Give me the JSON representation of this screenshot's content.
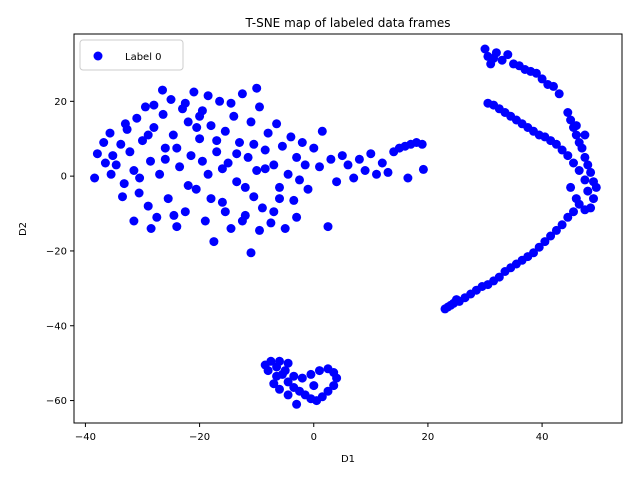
{
  "chart_data": {
    "type": "scatter",
    "title": "T-SNE map of labeled data frames",
    "xlabel": "D1",
    "ylabel": "D2",
    "xlim": [
      -42,
      54
    ],
    "ylim": [
      -66,
      38
    ],
    "xticks": [
      -40,
      -20,
      0,
      20,
      40
    ],
    "yticks": [
      -60,
      -40,
      -20,
      0,
      20
    ],
    "xtick_labels": [
      "−40",
      "−20",
      "0",
      "20",
      "40"
    ],
    "ytick_labels": [
      "−60",
      "−40",
      "−20",
      "0",
      "20"
    ],
    "grid": false,
    "legend_position": "top-left",
    "series": [
      {
        "name": "Label 0",
        "color": "#0000ff",
        "points": [
          [
            -38.4,
            -0.5
          ],
          [
            -37.9,
            6.0
          ],
          [
            -36.8,
            9.0
          ],
          [
            -35.7,
            11.5
          ],
          [
            -35.2,
            5.5
          ],
          [
            -34.6,
            3.0
          ],
          [
            -33.8,
            8.5
          ],
          [
            -33.2,
            -2.0
          ],
          [
            -32.7,
            12.5
          ],
          [
            -32.2,
            6.5
          ],
          [
            -31.5,
            1.5
          ],
          [
            -31.0,
            15.5
          ],
          [
            -30.6,
            -4.5
          ],
          [
            -30.0,
            9.5
          ],
          [
            -29.5,
            18.5
          ],
          [
            -29.0,
            -8.0
          ],
          [
            -28.6,
            4.0
          ],
          [
            -28.0,
            13.0
          ],
          [
            -27.5,
            -11.0
          ],
          [
            -27.0,
            0.5
          ],
          [
            -26.4,
            16.5
          ],
          [
            -26.0,
            7.5
          ],
          [
            -25.5,
            -6.0
          ],
          [
            -25.0,
            20.5
          ],
          [
            -24.6,
            11.0
          ],
          [
            -24.0,
            -13.5
          ],
          [
            -23.5,
            2.5
          ],
          [
            -23.0,
            18.0
          ],
          [
            -22.5,
            -9.5
          ],
          [
            -22.0,
            14.5
          ],
          [
            -21.5,
            5.5
          ],
          [
            -21.0,
            22.5
          ],
          [
            -20.6,
            -3.5
          ],
          [
            -20.0,
            10.0
          ],
          [
            -19.5,
            17.5
          ],
          [
            -19.0,
            -12.0
          ],
          [
            -18.5,
            0.5
          ],
          [
            -18.0,
            13.5
          ],
          [
            -17.5,
            -17.5
          ],
          [
            -17.0,
            6.5
          ],
          [
            -16.5,
            20.0
          ],
          [
            -16.0,
            -7.0
          ],
          [
            -15.5,
            12.0
          ],
          [
            -15.0,
            3.5
          ],
          [
            -14.5,
            -14.0
          ],
          [
            -14.0,
            16.0
          ],
          [
            -13.5,
            -1.5
          ],
          [
            -13.0,
            9.0
          ],
          [
            -12.5,
            22.0
          ],
          [
            -12.0,
            -10.5
          ],
          [
            -11.5,
            5.0
          ],
          [
            -11.0,
            14.5
          ],
          [
            -10.5,
            -5.5
          ],
          [
            -10.0,
            1.5
          ],
          [
            -9.5,
            18.5
          ],
          [
            -9.0,
            -8.5
          ],
          [
            -8.5,
            7.0
          ],
          [
            -8.0,
            11.5
          ],
          [
            -7.5,
            -12.5
          ],
          [
            -7.0,
            3.0
          ],
          [
            -6.5,
            14.0
          ],
          [
            -6.0,
            -3.0
          ],
          [
            -5.5,
            8.0
          ],
          [
            -5.0,
            -14.0
          ],
          [
            -4.5,
            0.5
          ],
          [
            -4.0,
            10.5
          ],
          [
            -3.5,
            -6.5
          ],
          [
            -3.0,
            5.0
          ],
          [
            -2.5,
            -1.0
          ],
          [
            -2.0,
            9.0
          ],
          [
            -1.5,
            3.0
          ],
          [
            -1.0,
            -3.5
          ],
          [
            0.0,
            7.5
          ],
          [
            1.0,
            2.5
          ],
          [
            1.5,
            12.0
          ],
          [
            2.5,
            -13.5
          ],
          [
            3.0,
            4.5
          ],
          [
            4.0,
            -1.5
          ],
          [
            5.0,
            5.5
          ],
          [
            6.0,
            3.0
          ],
          [
            7.0,
            -0.5
          ],
          [
            8.0,
            4.5
          ],
          [
            9.0,
            1.5
          ],
          [
            10.0,
            6.0
          ],
          [
            11.0,
            0.5
          ],
          [
            12.0,
            3.5
          ],
          [
            13.0,
            1.0
          ],
          [
            14.0,
            6.5
          ],
          [
            15.0,
            7.5
          ],
          [
            16.0,
            8.0
          ],
          [
            17.0,
            8.5
          ],
          [
            18.0,
            9.0
          ],
          [
            19.0,
            8.5
          ],
          [
            19.2,
            1.8
          ],
          [
            16.5,
            -0.5
          ],
          [
            -11.0,
            -20.5
          ],
          [
            -20.5,
            13.0
          ],
          [
            -26.0,
            4.5
          ],
          [
            -30.5,
            -0.5
          ],
          [
            -33.5,
            -5.5
          ],
          [
            -31.5,
            -12.0
          ],
          [
            -28.5,
            -14.0
          ],
          [
            -24.5,
            -10.5
          ],
          [
            -22.0,
            -2.5
          ],
          [
            -18.0,
            -6.0
          ],
          [
            -15.5,
            -9.5
          ],
          [
            -12.5,
            -12.0
          ],
          [
            -9.5,
            -14.5
          ],
          [
            -7.0,
            -9.5
          ],
          [
            -3.0,
            -11.0
          ],
          [
            -29.0,
            11.0
          ],
          [
            -24.0,
            7.5
          ],
          [
            -19.5,
            4.0
          ],
          [
            -17.0,
            9.5
          ],
          [
            -13.5,
            6.0
          ],
          [
            -10.5,
            8.5
          ],
          [
            -8.5,
            2.0
          ],
          [
            -22.5,
            19.5
          ],
          [
            -18.5,
            21.5
          ],
          [
            -14.5,
            19.5
          ],
          [
            -10.0,
            23.5
          ],
          [
            -26.5,
            23.0
          ],
          [
            -35.5,
            0.5
          ],
          [
            -36.5,
            3.5
          ],
          [
            -33.0,
            14.0
          ],
          [
            -28.0,
            19.0
          ],
          [
            -20.0,
            16.0
          ],
          [
            -16.0,
            2.0
          ],
          [
            -12.0,
            -3.0
          ],
          [
            -6.0,
            -6.0
          ],
          [
            30.0,
            34.0
          ],
          [
            30.5,
            32.0
          ],
          [
            31.0,
            30.0
          ],
          [
            31.5,
            31.5
          ],
          [
            32.0,
            33.0
          ],
          [
            33.0,
            31.0
          ],
          [
            34.0,
            32.5
          ],
          [
            35.0,
            30.0
          ],
          [
            36.0,
            29.5
          ],
          [
            37.0,
            28.5
          ],
          [
            38.0,
            28.0
          ],
          [
            39.0,
            27.5
          ],
          [
            40.0,
            26.0
          ],
          [
            41.0,
            24.5
          ],
          [
            42.0,
            24.0
          ],
          [
            43.0,
            22.0
          ],
          [
            44.5,
            17.0
          ],
          [
            45.0,
            15.0
          ],
          [
            45.5,
            13.0
          ],
          [
            46.0,
            11.0
          ],
          [
            46.5,
            9.0
          ],
          [
            47.0,
            7.5
          ],
          [
            47.5,
            5.0
          ],
          [
            48.0,
            3.0
          ],
          [
            48.5,
            1.0
          ],
          [
            49.0,
            -1.5
          ],
          [
            49.5,
            -3.0
          ],
          [
            49.0,
            -6.0
          ],
          [
            48.5,
            -8.5
          ],
          [
            47.5,
            -9.0
          ],
          [
            46.5,
            -7.5
          ],
          [
            45.5,
            -9.5
          ],
          [
            44.5,
            -11.0
          ],
          [
            43.5,
            -13.0
          ],
          [
            42.5,
            -14.5
          ],
          [
            41.5,
            -16.0
          ],
          [
            40.5,
            -17.5
          ],
          [
            39.5,
            -19.0
          ],
          [
            38.5,
            -20.5
          ],
          [
            37.5,
            -21.5
          ],
          [
            36.5,
            -22.5
          ],
          [
            35.5,
            -23.5
          ],
          [
            34.5,
            -24.5
          ],
          [
            33.5,
            -25.5
          ],
          [
            32.5,
            -27.0
          ],
          [
            31.5,
            -28.0
          ],
          [
            30.5,
            -29.0
          ],
          [
            29.5,
            -29.5
          ],
          [
            28.5,
            -30.5
          ],
          [
            27.5,
            -31.5
          ],
          [
            26.5,
            -32.5
          ],
          [
            25.5,
            -33.5
          ],
          [
            24.5,
            -34.0
          ],
          [
            23.5,
            -35.0
          ],
          [
            23.0,
            -35.5
          ],
          [
            24.0,
            -34.5
          ],
          [
            25.0,
            -33.0
          ],
          [
            30.5,
            19.5
          ],
          [
            31.5,
            19.0
          ],
          [
            32.5,
            18.0
          ],
          [
            33.5,
            17.0
          ],
          [
            34.5,
            16.0
          ],
          [
            35.5,
            15.0
          ],
          [
            36.5,
            14.0
          ],
          [
            37.5,
            13.0
          ],
          [
            38.5,
            12.0
          ],
          [
            39.5,
            11.0
          ],
          [
            40.5,
            10.5
          ],
          [
            41.5,
            9.5
          ],
          [
            42.5,
            8.5
          ],
          [
            43.5,
            7.0
          ],
          [
            44.5,
            5.5
          ],
          [
            45.5,
            3.5
          ],
          [
            46.5,
            1.5
          ],
          [
            47.5,
            -1.0
          ],
          [
            48.0,
            -4.0
          ],
          [
            46.0,
            -6.0
          ],
          [
            45.0,
            -3.0
          ],
          [
            46.0,
            13.5
          ],
          [
            47.5,
            11.0
          ],
          [
            -7.5,
            -49.5
          ],
          [
            -6.5,
            -51.0
          ],
          [
            -5.5,
            -53.0
          ],
          [
            -4.5,
            -55.0
          ],
          [
            -3.5,
            -56.5
          ],
          [
            -2.5,
            -57.5
          ],
          [
            -1.5,
            -58.5
          ],
          [
            -0.5,
            -59.5
          ],
          [
            0.5,
            -60.0
          ],
          [
            1.5,
            -59.0
          ],
          [
            2.5,
            -57.5
          ],
          [
            3.5,
            -56.0
          ],
          [
            4.0,
            -54.0
          ],
          [
            3.5,
            -52.5
          ],
          [
            2.5,
            -51.5
          ],
          [
            1.0,
            -52.0
          ],
          [
            -0.5,
            -53.0
          ],
          [
            -2.0,
            -54.0
          ],
          [
            -3.5,
            -53.5
          ],
          [
            -5.0,
            -52.0
          ],
          [
            -6.5,
            -53.5
          ],
          [
            -7.0,
            -55.5
          ],
          [
            -6.0,
            -57.0
          ],
          [
            -4.5,
            -58.5
          ],
          [
            -3.0,
            -61.0
          ],
          [
            -8.0,
            -52.0
          ],
          [
            -8.5,
            -50.5
          ],
          [
            -6.0,
            -49.5
          ],
          [
            -4.5,
            -50.0
          ],
          [
            0.0,
            -56.0
          ]
        ]
      }
    ]
  }
}
